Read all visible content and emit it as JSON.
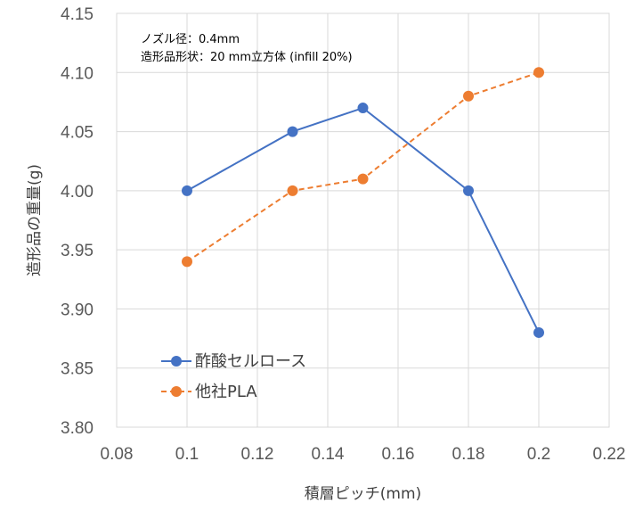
{
  "chart_data": {
    "type": "line",
    "title": "",
    "xlabel": "積層ピッチ(mm)",
    "ylabel": "造形品の重量(g)",
    "xlim": [
      0.08,
      0.22
    ],
    "ylim": [
      3.8,
      4.15
    ],
    "x_ticks": [
      0.08,
      0.1,
      0.12,
      0.14,
      0.16,
      0.18,
      0.2,
      0.22
    ],
    "x_tick_labels": [
      "0.08",
      "0.1",
      "0.12",
      "0.14",
      "0.16",
      "0.18",
      "0.2",
      "0.22"
    ],
    "y_ticks": [
      3.8,
      3.85,
      3.9,
      3.95,
      4.0,
      4.05,
      4.1,
      4.15
    ],
    "y_tick_labels": [
      "3.80",
      "3.85",
      "3.90",
      "3.95",
      "4.00",
      "4.05",
      "4.10",
      "4.15"
    ],
    "grid": true,
    "legend_position": "bottom-left",
    "annotations": [
      "ノズル径：0.4mm",
      "造形品形状：20 mm立方体 (infill 20%)"
    ],
    "series": [
      {
        "name": "酢酸セルロース",
        "color": "#4472c4",
        "dash": "solid",
        "x": [
          0.1,
          0.13,
          0.15,
          0.18,
          0.2
        ],
        "y": [
          4.0,
          4.05,
          4.07,
          4.0,
          3.88
        ]
      },
      {
        "name": "他社PLA",
        "color": "#ed7d31",
        "dash": "dashed",
        "x": [
          0.1,
          0.13,
          0.15,
          0.18,
          0.2
        ],
        "y": [
          3.94,
          4.0,
          4.01,
          4.08,
          4.1
        ]
      }
    ]
  }
}
